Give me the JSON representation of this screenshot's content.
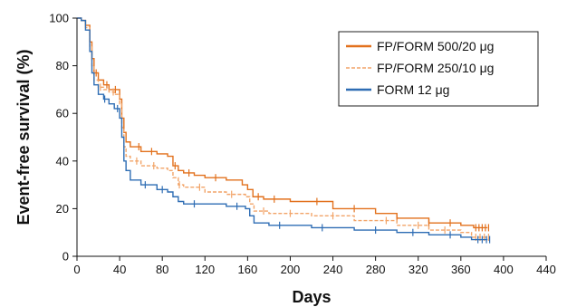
{
  "chart_data": {
    "type": "line",
    "title": "",
    "xlabel": "Days",
    "ylabel": "Event-free survival (%)",
    "xlim": [
      0,
      440
    ],
    "ylim": [
      0,
      100
    ],
    "xticks": [
      0,
      40,
      80,
      120,
      160,
      200,
      240,
      280,
      320,
      360,
      400,
      440
    ],
    "yticks": [
      0,
      20,
      40,
      60,
      80,
      100
    ],
    "grid": false,
    "legend_position": "top-right",
    "series": [
      {
        "name": "FP/FORM 500/20 μg",
        "color": "#e2711d",
        "line_style": "solid",
        "x": [
          0,
          4,
          8,
          12,
          14,
          16,
          20,
          25,
          30,
          35,
          40,
          42,
          44,
          46,
          50,
          60,
          75,
          85,
          90,
          95,
          100,
          110,
          120,
          140,
          155,
          160,
          165,
          175,
          200,
          240,
          280,
          300,
          330,
          360,
          372,
          385
        ],
        "y": [
          100,
          99,
          97,
          90,
          83,
          77,
          74,
          72,
          70,
          70,
          66,
          58,
          52,
          48,
          46,
          44,
          43,
          42,
          38,
          36,
          35,
          34,
          33,
          32,
          30,
          28,
          25,
          24,
          23,
          20,
          18,
          16,
          14,
          13,
          12,
          12
        ],
        "censored_x": [
          18,
          28,
          36,
          58,
          70,
          92,
          105,
          130,
          170,
          185,
          225,
          260,
          300,
          330,
          350,
          374,
          377,
          380,
          383,
          386
        ]
      },
      {
        "name": "FP/FORM 250/10 μg",
        "color": "#f2a468",
        "line_style": "dashed",
        "x": [
          0,
          4,
          8,
          12,
          14,
          16,
          20,
          25,
          30,
          35,
          40,
          42,
          44,
          46,
          50,
          60,
          75,
          85,
          90,
          95,
          100,
          120,
          140,
          158,
          162,
          166,
          180,
          220,
          260,
          300,
          330,
          360,
          370,
          385
        ],
        "y": [
          100,
          99,
          96,
          88,
          80,
          74,
          71,
          70,
          69,
          68,
          64,
          54,
          46,
          42,
          40,
          38,
          37,
          36,
          33,
          30,
          29,
          27,
          26,
          25,
          22,
          19,
          18,
          17,
          15,
          13,
          11,
          10,
          8,
          8
        ],
        "censored_x": [
          22,
          34,
          56,
          72,
          96,
          115,
          145,
          175,
          200,
          240,
          290,
          320,
          345,
          374,
          378,
          382,
          386
        ]
      },
      {
        "name": "FORM 12 μg",
        "color": "#2e6db4",
        "line_style": "solid",
        "x": [
          0,
          4,
          8,
          12,
          14,
          16,
          20,
          25,
          30,
          35,
          40,
          42,
          44,
          46,
          50,
          60,
          75,
          85,
          90,
          95,
          100,
          120,
          140,
          158,
          162,
          166,
          180,
          220,
          260,
          300,
          330,
          360,
          370,
          385
        ],
        "y": [
          100,
          99,
          95,
          86,
          77,
          72,
          68,
          66,
          64,
          62,
          58,
          50,
          40,
          36,
          32,
          30,
          28,
          27,
          25,
          23,
          22,
          22,
          21,
          20,
          17,
          14,
          13,
          12,
          11,
          10,
          9,
          8,
          7,
          7
        ],
        "censored_x": [
          26,
          38,
          64,
          80,
          110,
          150,
          190,
          230,
          280,
          315,
          350,
          376,
          380,
          384,
          387
        ]
      }
    ]
  }
}
